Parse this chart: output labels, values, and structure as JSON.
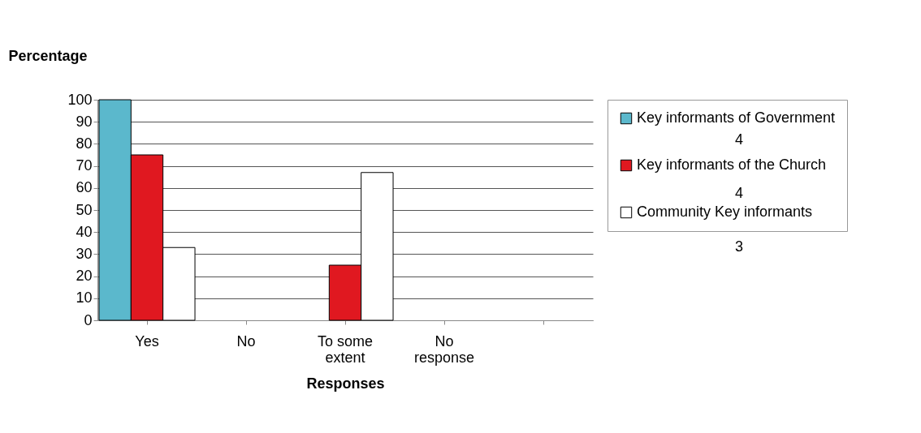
{
  "chart_data": {
    "type": "bar",
    "ylabel": "Percentage",
    "xlabel": "Responses",
    "categories": [
      "Yes",
      "No",
      "To some\nextent",
      "No\nresponse",
      null
    ],
    "series": [
      {
        "name": "Key informants of Government",
        "color": "#5bb8cc",
        "values": [
          100,
          0,
          0,
          0,
          null
        ]
      },
      {
        "name": "Key informants of the Church",
        "color": "#e01820",
        "values": [
          75,
          0,
          25,
          0,
          null
        ]
      },
      {
        "name": "Community Key informants",
        "color": "#ffffff",
        "values": [
          33,
          0,
          67,
          0,
          null
        ]
      }
    ],
    "ylim": [
      0,
      100
    ],
    "yticks": [
      0,
      10,
      20,
      30,
      40,
      50,
      60,
      70,
      80,
      90,
      100
    ],
    "grid": "y",
    "legend": "right",
    "annotations": [
      "4",
      "4",
      "3"
    ]
  }
}
